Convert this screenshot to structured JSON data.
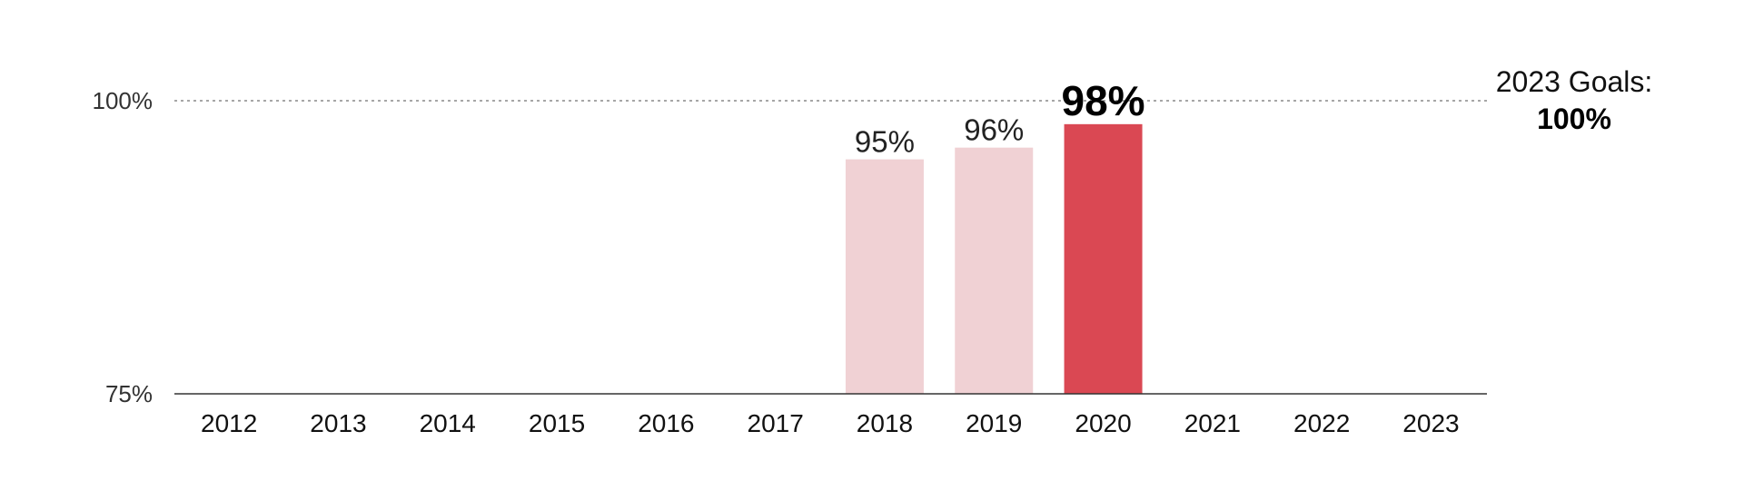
{
  "chart_data": {
    "type": "bar",
    "categories": [
      "2012",
      "2013",
      "2014",
      "2015",
      "2016",
      "2017",
      "2018",
      "2019",
      "2020",
      "2021",
      "2022",
      "2023"
    ],
    "values": [
      null,
      null,
      null,
      null,
      null,
      null,
      95,
      96,
      98,
      null,
      null,
      null
    ],
    "value_labels": [
      null,
      null,
      null,
      null,
      null,
      null,
      "95%",
      "96%",
      "98%",
      null,
      null,
      null
    ],
    "highlight_index": 8,
    "ylim": [
      75,
      100
    ],
    "yticks": [
      {
        "value": 100,
        "label": "100%"
      },
      {
        "value": 75,
        "label": "75%"
      }
    ],
    "reference_line": {
      "value": 100,
      "style": "dotted"
    },
    "goal_annotation": {
      "title": "2023 Goals:",
      "value": "100%"
    },
    "colors": {
      "bar": "#f0d1d4",
      "highlight": "#da4853",
      "axis": "#333333",
      "reference": "#888888"
    }
  }
}
